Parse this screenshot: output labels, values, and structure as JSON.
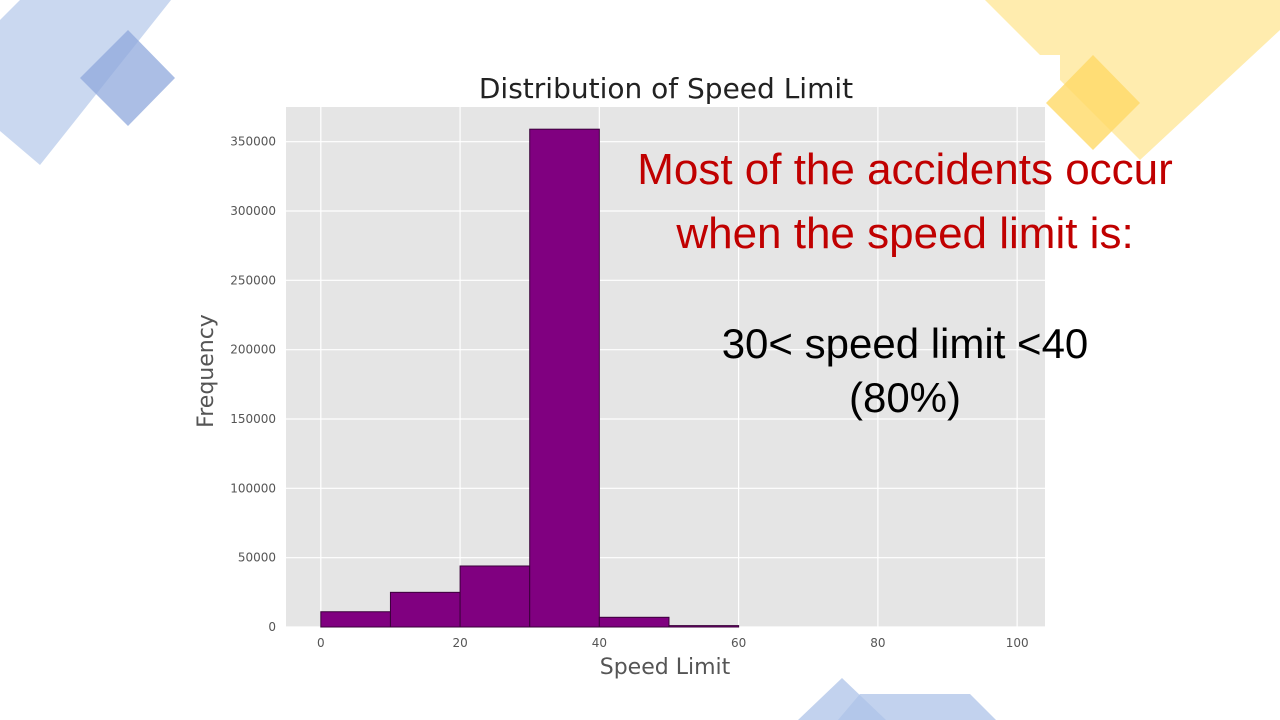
{
  "colors": {
    "plot_background": "#e5e5e5",
    "bar_fill": "#800080",
    "bar_edge": "#3a003a",
    "callout_text": "#c00000",
    "deco_blue": "#aec3e8",
    "deco_yellow": "#ffe79a"
  },
  "callout": {
    "line1": "Most of the accidents occur",
    "line2": "when the speed limit is:"
  },
  "result": {
    "line1": "30< speed limit <40",
    "line2": "(80%)"
  },
  "chart_data": {
    "type": "bar",
    "title": "Distribution of Speed Limit",
    "xlabel": "Speed Limit",
    "ylabel": "Frequency",
    "xlim": [
      -5,
      104
    ],
    "ylim": [
      0,
      375000
    ],
    "xticks": [
      0,
      20,
      40,
      60,
      80,
      100
    ],
    "yticks": [
      0,
      50000,
      100000,
      150000,
      200000,
      250000,
      300000,
      350000
    ],
    "grid": true,
    "bins": [
      {
        "start": 0,
        "end": 10,
        "value": 11000
      },
      {
        "start": 10,
        "end": 20,
        "value": 25000
      },
      {
        "start": 20,
        "end": 30,
        "value": 44000
      },
      {
        "start": 30,
        "end": 40,
        "value": 359000
      },
      {
        "start": 40,
        "end": 50,
        "value": 7000
      },
      {
        "start": 50,
        "end": 60,
        "value": 1000
      }
    ]
  }
}
